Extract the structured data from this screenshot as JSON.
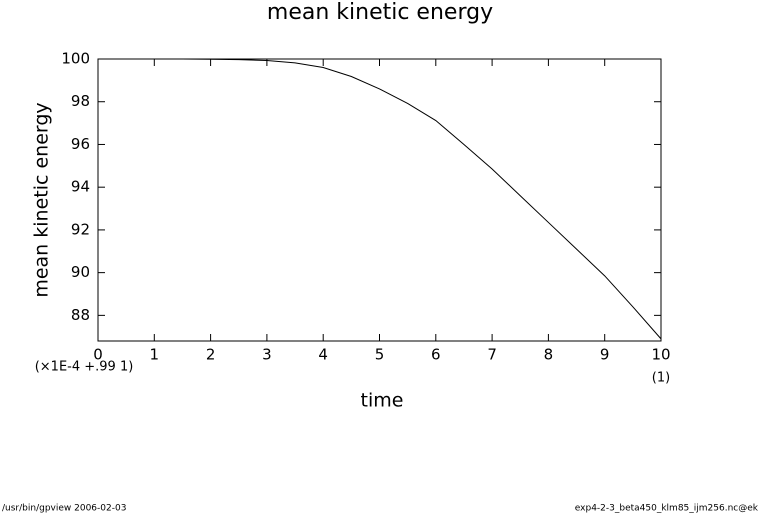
{
  "chart_data": {
    "type": "line",
    "title": "mean kinetic energy",
    "xlabel": "time",
    "ylabel": "mean kinetic energy",
    "x": [
      0,
      0.5,
      1,
      1.5,
      2,
      2.5,
      3,
      3.5,
      4,
      4.5,
      5,
      5.5,
      6,
      6.5,
      7,
      7.5,
      8,
      8.5,
      9,
      9.5,
      10
    ],
    "series": [
      {
        "name": "mean kinetic energy",
        "color": "#000000",
        "values": [
          100,
          100,
          100,
          100,
          99.99,
          99.97,
          99.93,
          99.82,
          99.6,
          99.18,
          98.6,
          97.92,
          97.12,
          96.0,
          94.85,
          93.6,
          92.35,
          91.1,
          89.85,
          88.4,
          86.9
        ]
      }
    ],
    "xlim": [
      0,
      10
    ],
    "xticks": [
      0,
      1,
      2,
      3,
      4,
      5,
      6,
      7,
      8,
      9,
      10
    ],
    "ylim": [
      86.8,
      100
    ],
    "yticks": [
      88,
      90,
      92,
      94,
      96,
      98,
      100
    ],
    "y_scale_note": "(×1E-4 +.99 1)",
    "x_scale_note": "(1)",
    "footer_left": "/usr/bin/gpview   2006-02-03",
    "footer_right": "exp4-2-3_beta450_klm85_ijm256.nc@ek"
  }
}
